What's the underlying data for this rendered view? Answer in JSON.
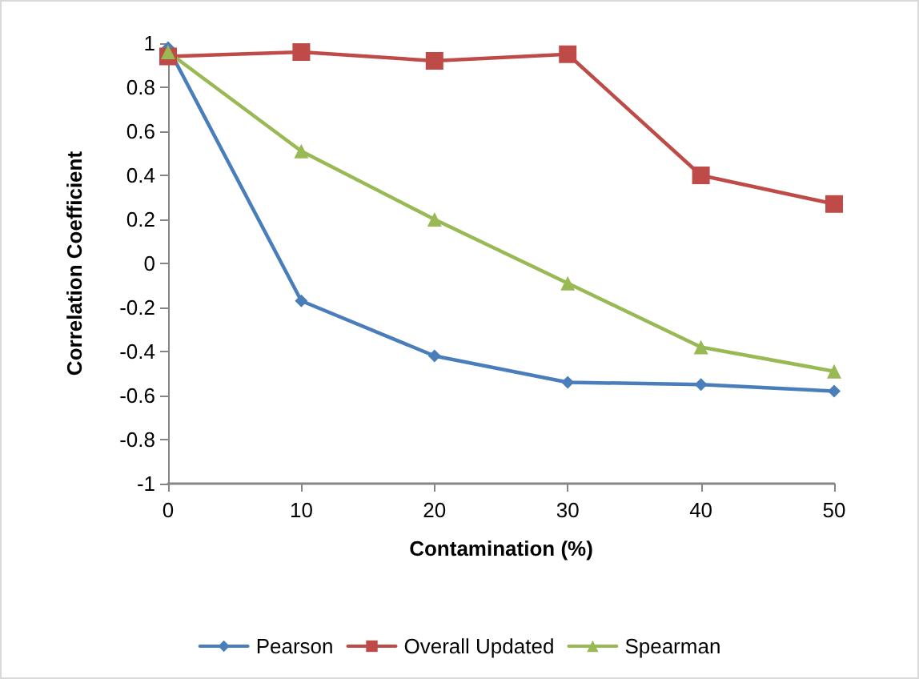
{
  "chart_data": {
    "type": "line",
    "xlabel": "Contamination (%)",
    "ylabel": "Correlation Coefficient",
    "x": [
      0,
      10,
      20,
      30,
      40,
      50
    ],
    "series": [
      {
        "name": "Pearson",
        "color": "#4a7ebb",
        "marker": "diamond",
        "values": [
          0.98,
          -0.17,
          -0.42,
          -0.54,
          -0.55,
          -0.58
        ]
      },
      {
        "name": "Overall Updated",
        "color": "#be4b48",
        "marker": "square",
        "values": [
          0.94,
          0.96,
          0.92,
          0.95,
          0.4,
          0.27
        ]
      },
      {
        "name": "Spearman",
        "color": "#98b954",
        "marker": "triangle",
        "values": [
          0.96,
          0.51,
          0.2,
          -0.09,
          -0.38,
          -0.49
        ]
      }
    ],
    "xlim": [
      0,
      50
    ],
    "xticks": [
      0,
      10,
      20,
      30,
      40,
      50
    ],
    "ylim": [
      -1,
      1
    ],
    "yticks": [
      -1,
      -0.8,
      -0.6,
      -0.4,
      -0.2,
      0,
      0.2,
      0.4,
      0.6,
      0.8,
      1
    ],
    "grid": false,
    "legend": "bottom"
  }
}
